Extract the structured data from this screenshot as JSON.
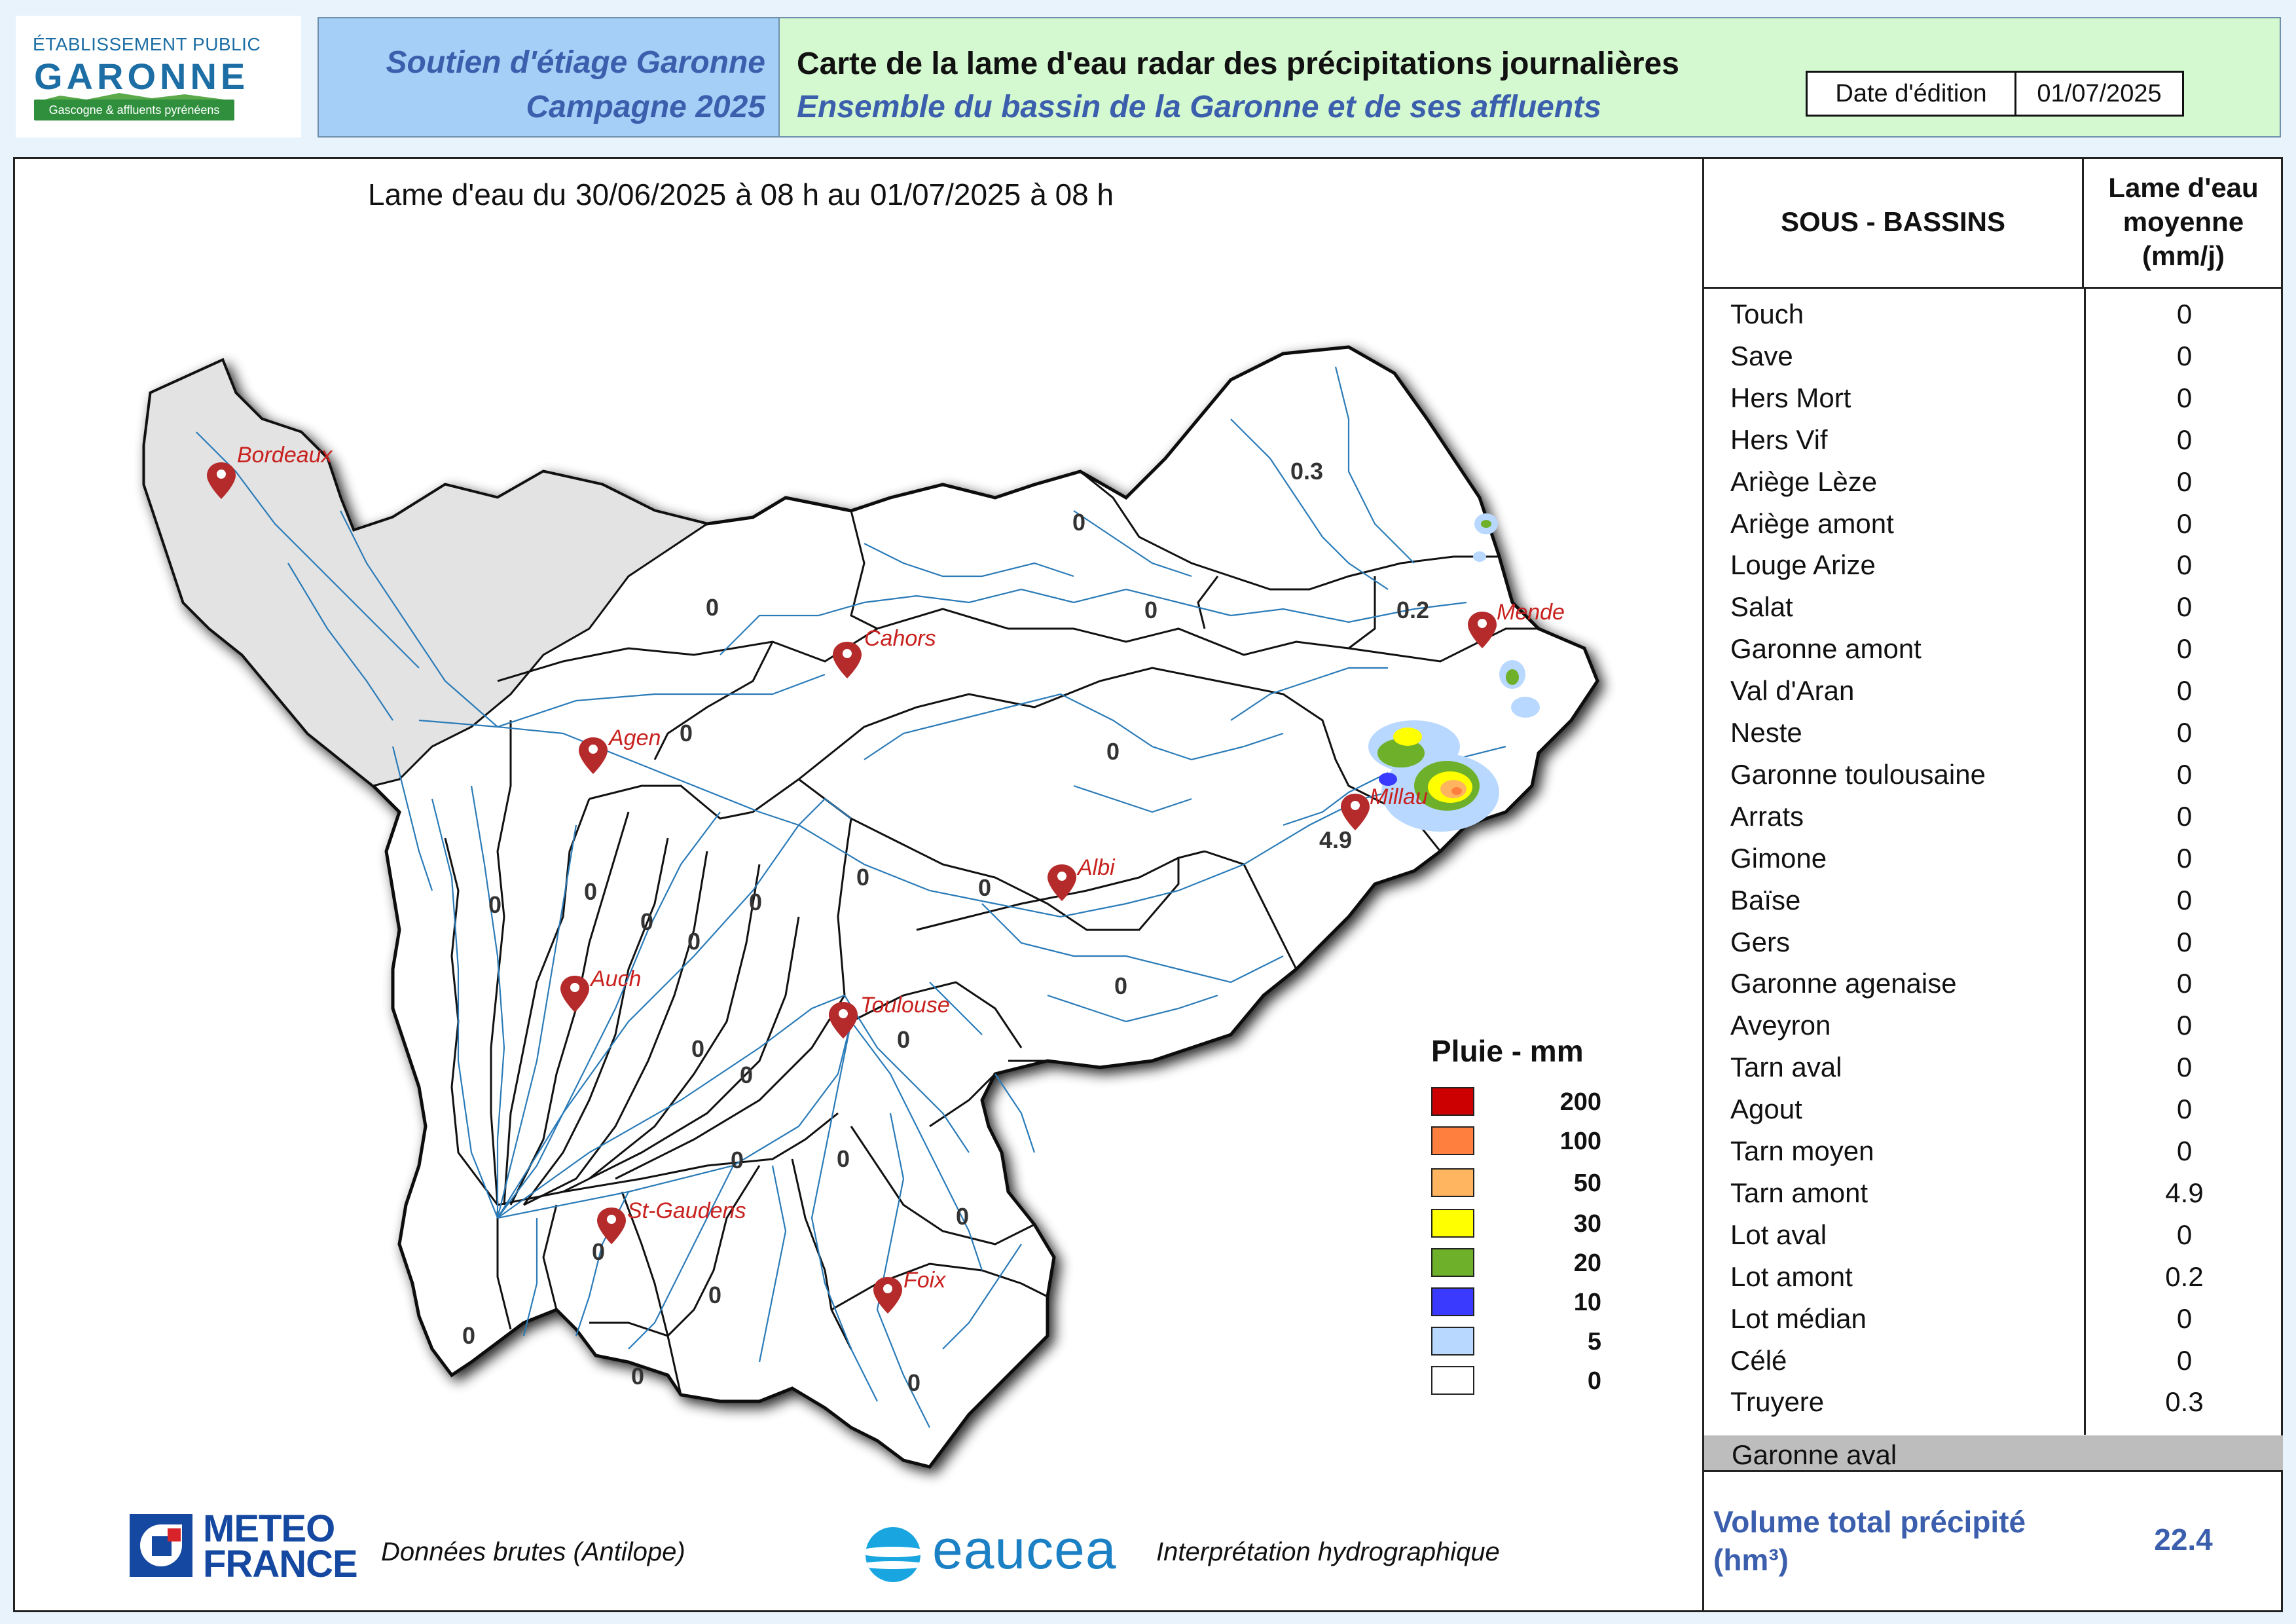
{
  "logo": {
    "line1": "ÉTABLISSEMENT PUBLIC",
    "line2": "GARONNE",
    "line3": "Gascogne & affluents pyrénéens"
  },
  "header": {
    "campaign_line1": "Soutien d'étiage Garonne",
    "campaign_line2": "Campagne 2025",
    "title": "Carte de la lame d'eau radar des précipitations journalières",
    "subtitle": "Ensemble du bassin de la Garonne et de ses affluents",
    "date_label": "Date d'édition",
    "date_value": "01/07/2025"
  },
  "map": {
    "title_prefix": "Lame d'eau du",
    "start_date": "30/06/2025",
    "start_hour": "à 08 h au",
    "end_date": "01/07/2025",
    "end_hour": "à 08 h",
    "cities": [
      {
        "name": "Bordeaux"
      },
      {
        "name": "Cahors"
      },
      {
        "name": "Agen"
      },
      {
        "name": "Mende"
      },
      {
        "name": "Millau"
      },
      {
        "name": "Albi"
      },
      {
        "name": "Auch"
      },
      {
        "name": "Toulouse"
      },
      {
        "name": "St-Gaudens"
      },
      {
        "name": "Foix"
      }
    ],
    "basin_values": [
      "0.3",
      "0",
      "0",
      "0",
      "0.2",
      "0",
      "0",
      "4.9",
      "0",
      "0",
      "0",
      "0",
      "0",
      "0",
      "0",
      "0",
      "0",
      "0",
      "0",
      "0",
      "0",
      "0",
      "0",
      "0",
      "0",
      "0",
      "0",
      "0",
      "0"
    ]
  },
  "legend": {
    "title": "Pluie - mm",
    "items": [
      {
        "value": "200",
        "color": "#cc0000"
      },
      {
        "value": "100",
        "color": "#ff7f3f"
      },
      {
        "value": "50",
        "color": "#ffb560"
      },
      {
        "value": "30",
        "color": "#ffff00"
      },
      {
        "value": "20",
        "color": "#6eb02a"
      },
      {
        "value": "10",
        "color": "#3a3aff"
      },
      {
        "value": "5",
        "color": "#b8d8ff"
      },
      {
        "value": "0",
        "color": "#ffffff"
      }
    ]
  },
  "table": {
    "col1": "SOUS - BASSINS",
    "col2_line1": "Lame d'eau",
    "col2_line2": "moyenne",
    "col2_line3": "(mm/j)",
    "rows": [
      {
        "name": "Touch",
        "value": "0"
      },
      {
        "name": "Save",
        "value": "0"
      },
      {
        "name": "Hers Mort",
        "value": "0"
      },
      {
        "name": "Hers Vif",
        "value": "0"
      },
      {
        "name": "Ariège Lèze",
        "value": "0"
      },
      {
        "name": "Ariège amont",
        "value": "0"
      },
      {
        "name": "Louge Arize",
        "value": "0"
      },
      {
        "name": "Salat",
        "value": "0"
      },
      {
        "name": "Garonne amont",
        "value": "0"
      },
      {
        "name": "Val d'Aran",
        "value": "0"
      },
      {
        "name": "Neste",
        "value": "0"
      },
      {
        "name": "Garonne toulousaine",
        "value": "0"
      },
      {
        "name": "Arrats",
        "value": "0"
      },
      {
        "name": "Gimone",
        "value": "0"
      },
      {
        "name": "Baïse",
        "value": "0"
      },
      {
        "name": "Gers",
        "value": "0"
      },
      {
        "name": "Garonne agenaise",
        "value": "0"
      },
      {
        "name": "Aveyron",
        "value": "0"
      },
      {
        "name": "Tarn aval",
        "value": "0"
      },
      {
        "name": "Agout",
        "value": "0"
      },
      {
        "name": "Tarn moyen",
        "value": "0"
      },
      {
        "name": "Tarn amont",
        "value": "4.9"
      },
      {
        "name": "Lot aval",
        "value": "0"
      },
      {
        "name": "Lot amont",
        "value": "0.2"
      },
      {
        "name": "Lot médian",
        "value": "0"
      },
      {
        "name": "Célé",
        "value": "0"
      },
      {
        "name": "Truyere",
        "value": "0.3"
      }
    ],
    "garonne_aval": "Garonne aval",
    "volume_label": "Volume total précipité (hm³)",
    "volume_value": "22.4"
  },
  "footer": {
    "meteo_line1": "METEO",
    "meteo_line2": "FRANCE",
    "meteo_caption": "Données brutes (Antilope)",
    "eaucea_name": "eaucea",
    "eaucea_caption": "Interprétation hydrographique"
  }
}
